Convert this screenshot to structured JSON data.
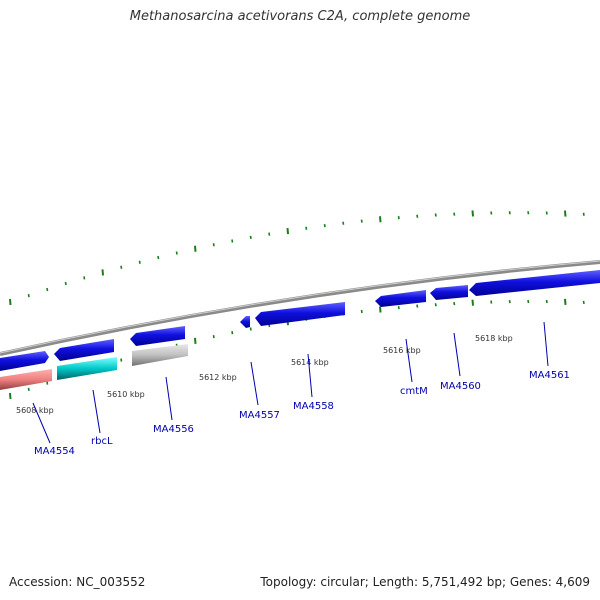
{
  "title": "Methanosarcina acetivorans C2A, complete genome",
  "footer": {
    "accession": "Accession: NC_003552",
    "summary": "Topology: circular; Length: 5,751,492 bp; Genes: 4,609"
  },
  "colors": {
    "backbone": "#8a8a8a",
    "tick": "#1a7f1a",
    "gene_default": "#1010e0",
    "gene_pink": "#f08080",
    "gene_cyan": "#00c8c8",
    "gene_gray": "#c0c0c0",
    "label": "#0000b0"
  },
  "kbp_labels": [
    "5608 kbp",
    "5610 kbp",
    "5612 kbp",
    "5614 kbp",
    "5616 kbp",
    "5618 kbp"
  ],
  "genes": [
    {
      "label": "MA4554"
    },
    {
      "label": "rbcL"
    },
    {
      "label": "MA4556"
    },
    {
      "label": "MA4557"
    },
    {
      "label": "MA4558"
    },
    {
      "label": "cmtM"
    },
    {
      "label": "MA4560"
    },
    {
      "label": "MA4561"
    }
  ]
}
